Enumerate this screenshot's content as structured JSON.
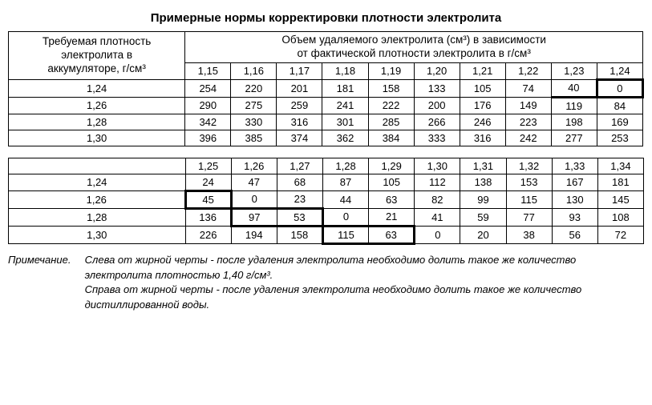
{
  "title": "Примерные нормы корректировки плотности электролита",
  "header_left_l1": "Требуемая плотность",
  "header_left_l2": "электролита в",
  "header_left_l3": "аккумуляторе, г/см³",
  "header_right_l1": "Объем удаляемого электролита (см³) в зависимости",
  "header_right_l2": "от фактической плотности электролита в г/см³",
  "top_cols": [
    "1,15",
    "1,16",
    "1,17",
    "1,18",
    "1,19",
    "1,20",
    "1,21",
    "1,22",
    "1,23",
    "1,24"
  ],
  "top_rows": [
    {
      "label": "1,24",
      "vals": [
        "254",
        "220",
        "201",
        "181",
        "158",
        "133",
        "105",
        "74",
        "40",
        "0"
      ]
    },
    {
      "label": "1,26",
      "vals": [
        "290",
        "275",
        "259",
        "241",
        "222",
        "200",
        "176",
        "149",
        "119",
        "84"
      ]
    },
    {
      "label": "1,28",
      "vals": [
        "342",
        "330",
        "316",
        "301",
        "285",
        "266",
        "246",
        "223",
        "198",
        "169"
      ]
    },
    {
      "label": "1,30",
      "vals": [
        "396",
        "385",
        "374",
        "362",
        "384",
        "333",
        "316",
        "242",
        "277",
        "253"
      ]
    }
  ],
  "bot_cols": [
    "1,25",
    "1,26",
    "1,27",
    "1,28",
    "1,29",
    "1,30",
    "1,31",
    "1,32",
    "1,33",
    "1,34"
  ],
  "bot_rows": [
    {
      "label": "1,24",
      "vals": [
        "24",
        "47",
        "68",
        "87",
        "105",
        "112",
        "138",
        "153",
        "167",
        "181"
      ]
    },
    {
      "label": "1,26",
      "vals": [
        "45",
        "0",
        "23",
        "44",
        "63",
        "82",
        "99",
        "115",
        "130",
        "145"
      ]
    },
    {
      "label": "1,28",
      "vals": [
        "136",
        "97",
        "53",
        "0",
        "21",
        "41",
        "59",
        "77",
        "93",
        "108"
      ]
    },
    {
      "label": "1,30",
      "vals": [
        "226",
        "194",
        "158",
        "115",
        "63",
        "0",
        "20",
        "38",
        "56",
        "72"
      ]
    }
  ],
  "note_label": "Примечание.",
  "note_p1": "Слева от жирной черты - после удаления электролита необходимо долить такое же количество электролита плотностью 1,40 г/см³.",
  "note_p2": "Справа от жирной черты - после удаления электролита необходимо долить такое же количество дистиллированной воды."
}
